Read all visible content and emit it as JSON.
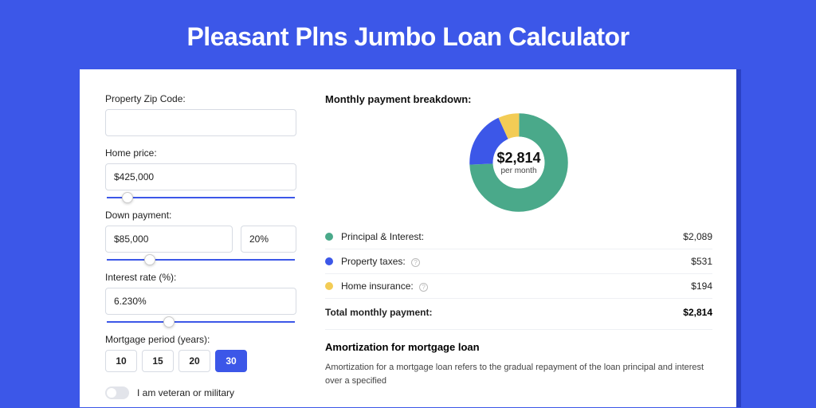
{
  "page_title": "Pleasant Plns Jumbo Loan Calculator",
  "form": {
    "zip_label": "Property Zip Code:",
    "zip_value": "",
    "home_price_label": "Home price:",
    "home_price_value": "$425,000",
    "home_price_slider_pct": 8,
    "down_payment_label": "Down payment:",
    "down_payment_value": "$85,000",
    "down_payment_pct_value": "20%",
    "down_payment_slider_pct": 20,
    "rate_label": "Interest rate (%):",
    "rate_value": "6.230%",
    "rate_slider_pct": 30,
    "period_label": "Mortgage period (years):",
    "period_options": [
      "10",
      "15",
      "20",
      "30"
    ],
    "period_selected_index": 3,
    "veteran_label": "I am veteran or military"
  },
  "breakdown": {
    "title": "Monthly payment breakdown:",
    "donut": {
      "center_amount": "$2,814",
      "center_sub": "per month",
      "slices": [
        {
          "label": "Principal & Interest:",
          "value_label": "$2,089",
          "value_num": 2089,
          "color": "#4aa98a",
          "info": false
        },
        {
          "label": "Property taxes:",
          "value_label": "$531",
          "value_num": 531,
          "color": "#3c57e8",
          "info": true
        },
        {
          "label": "Home insurance:",
          "value_label": "$194",
          "value_num": 194,
          "color": "#f3cc55",
          "info": true
        }
      ],
      "total": 2814
    },
    "total_label": "Total monthly payment:",
    "total_value": "$2,814"
  },
  "amortization": {
    "title": "Amortization for mortgage loan",
    "body": "Amortization for a mortgage loan refers to the gradual repayment of the loan principal and interest over a specified"
  },
  "colors": {
    "bg": "#3c57e8",
    "shadow": "#2a41c4",
    "principal": "#4aa98a",
    "taxes": "#3c57e8",
    "insurance": "#f3cc55"
  }
}
